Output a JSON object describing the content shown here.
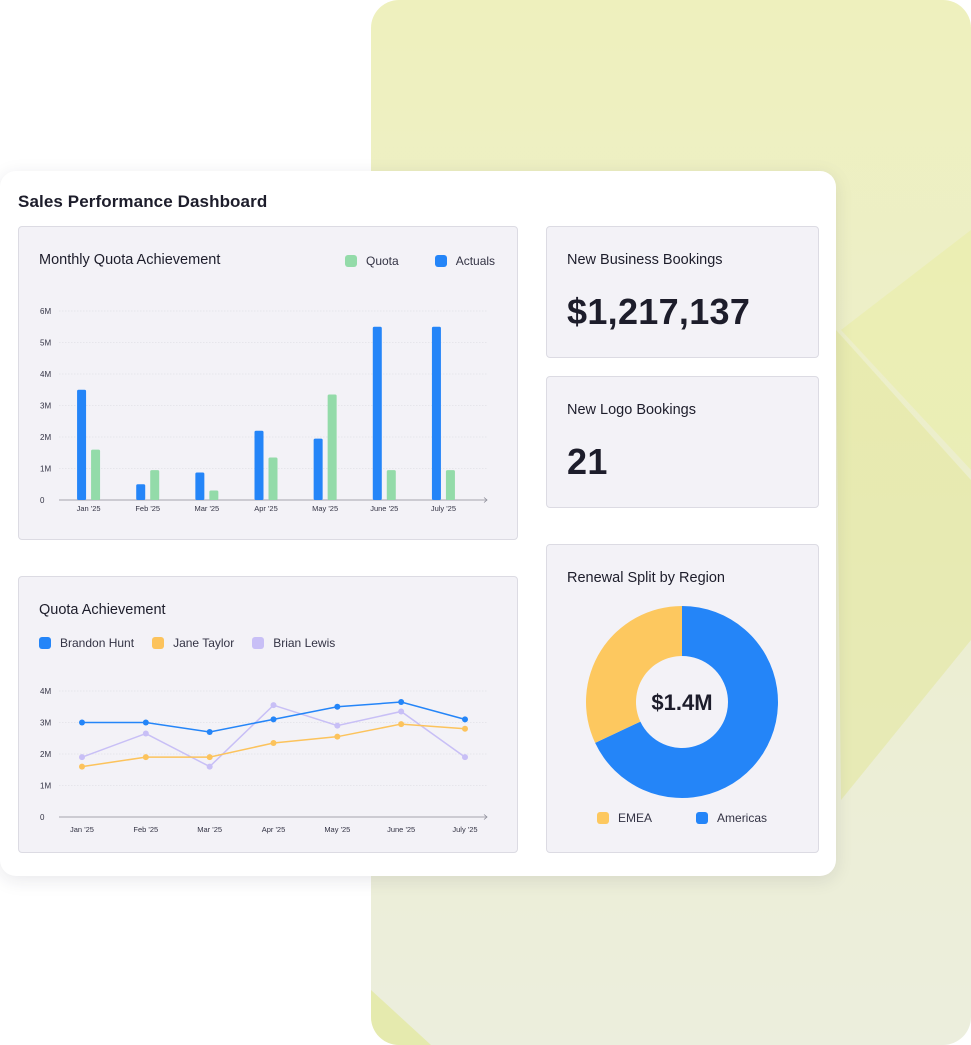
{
  "dashboard": {
    "title": "Sales Performance Dashboard"
  },
  "colors": {
    "quota_green": "#93dba9",
    "actuals_blue": "#2485f8",
    "brandon_blue": "#2485f8",
    "jane_yellow": "#fcc35c",
    "brian_lavender": "#c8bff6",
    "emea_yellow": "#fdc85f",
    "americas_blue": "#2485f8",
    "background_accent": "#eef0bd"
  },
  "monthly_quota": {
    "title": "Monthly Quota Achievement",
    "legend": [
      {
        "label": "Quota",
        "color": "#93dba9"
      },
      {
        "label": "Actuals",
        "color": "#2485f8"
      }
    ]
  },
  "quota_achievement": {
    "title": "Quota Achievement",
    "legend": [
      {
        "label": "Brandon Hunt",
        "color": "#2485f8"
      },
      {
        "label": "Jane Taylor",
        "color": "#fcc35c"
      },
      {
        "label": "Brian Lewis",
        "color": "#c8bff6"
      }
    ]
  },
  "new_business": {
    "title": "New Business Bookings",
    "value": "$1,217,137"
  },
  "new_logo": {
    "title": "New Logo Bookings",
    "value": "21"
  },
  "renewal": {
    "title": "Renewal Split by Region",
    "center_label": "$1.4M",
    "legend": [
      {
        "label": "EMEA",
        "color": "#fdc85f"
      },
      {
        "label": "Americas",
        "color": "#2485f8"
      }
    ]
  },
  "chart_data": [
    {
      "type": "bar",
      "title": "Monthly Quota Achievement",
      "categories": [
        "Jan '25",
        "Feb '25",
        "Mar '25",
        "Apr '25",
        "May '25",
        "June '25",
        "July '25"
      ],
      "y_ticks": [
        "0",
        "1M",
        "2M",
        "3M",
        "4M",
        "5M",
        "6M"
      ],
      "ylim": [
        0,
        6000000
      ],
      "grid": true,
      "legend_position": "top-right",
      "series": [
        {
          "name": "Actuals",
          "color": "#2485f8",
          "values": [
            3500000,
            500000,
            875000,
            2200000,
            1950000,
            5500000,
            5500000
          ]
        },
        {
          "name": "Quota",
          "color": "#93dba9",
          "values": [
            1600000,
            950000,
            300000,
            1350000,
            3350000,
            950000,
            950000
          ]
        }
      ]
    },
    {
      "type": "line",
      "title": "Quota Achievement",
      "categories": [
        "Jan '25",
        "Feb '25",
        "Mar '25",
        "Apr '25",
        "May '25",
        "June '25",
        "July '25"
      ],
      "y_ticks": [
        "0",
        "1M",
        "2M",
        "3M",
        "4M"
      ],
      "ylim": [
        0,
        4000000
      ],
      "grid": true,
      "legend_position": "top-left",
      "series": [
        {
          "name": "Brandon Hunt",
          "color": "#2485f8",
          "values": [
            3000000,
            3000000,
            2700000,
            3100000,
            3500000,
            3650000,
            3100000
          ]
        },
        {
          "name": "Jane Taylor",
          "color": "#fcc35c",
          "values": [
            1600000,
            1900000,
            1900000,
            2350000,
            2550000,
            2950000,
            2800000
          ]
        },
        {
          "name": "Brian Lewis",
          "color": "#c8bff6",
          "values": [
            1900000,
            2650000,
            1600000,
            3550000,
            2900000,
            3350000,
            1900000
          ]
        }
      ]
    },
    {
      "type": "pie",
      "title": "Renewal Split by Region",
      "center_label": "$1.4M",
      "legend_position": "bottom",
      "series": [
        {
          "name": "Americas",
          "color": "#2485f8",
          "value": 68
        },
        {
          "name": "EMEA",
          "color": "#fdc85f",
          "value": 32
        }
      ]
    }
  ]
}
